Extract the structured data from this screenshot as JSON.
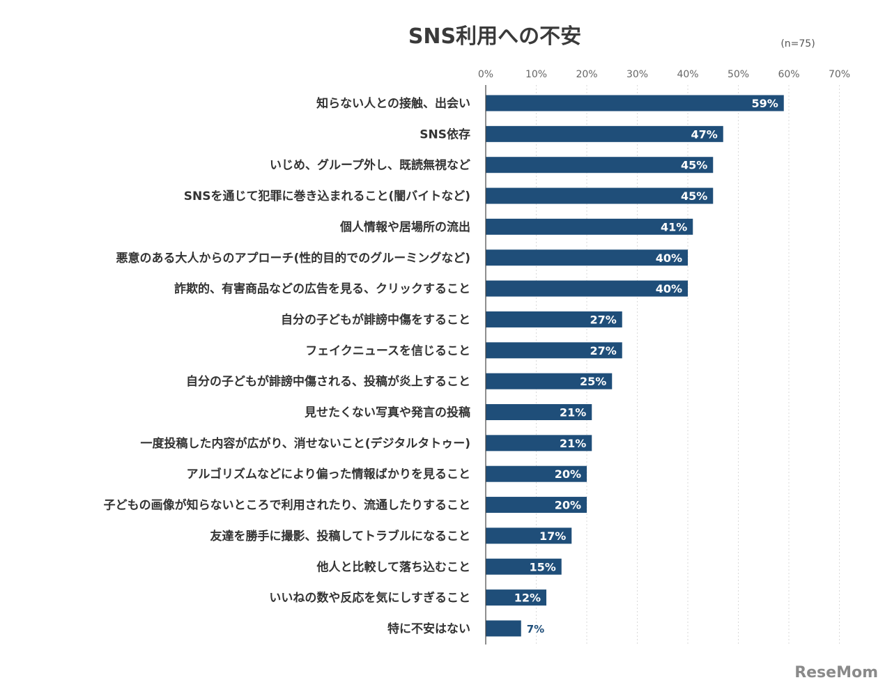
{
  "chart_data": {
    "type": "bar",
    "orientation": "horizontal",
    "title": "SNS利用への不安",
    "note": "(n=75)",
    "x_ticks": [
      "0%",
      "10%",
      "20%",
      "30%",
      "40%",
      "50%",
      "60%",
      "70%"
    ],
    "xlim": [
      0,
      70
    ],
    "grid": true,
    "bar_color": "#1f4e79",
    "categories": [
      "知らない人との接触、出会い",
      "SNS依存",
      "いじめ、グループ外し、既読無視など",
      "SNSを通じて犯罪に巻き込まれること(闇バイトなど)",
      "個人情報や居場所の流出",
      "悪意のある大人からのアプローチ(性的目的でのグルーミングなど)",
      "詐欺的、有害商品などの広告を見る、クリックすること",
      "自分の子どもが誹謗中傷をすること",
      "フェイクニュースを信じること",
      "自分の子どもが誹謗中傷される、投稿が炎上すること",
      "見せたくない写真や発言の投稿",
      "一度投稿した内容が広がり、消せないこと(デジタルタトゥー)",
      "アルゴリズムなどにより偏った情報ばかりを見ること",
      "子どもの画像が知らないところで利用されたり、流通したりすること",
      "友達を勝手に撮影、投稿してトラブルになること",
      "他人と比較して落ち込むこと",
      "いいねの数や反応を気にしすぎること",
      "特に不安はない"
    ],
    "values": [
      59,
      47,
      45,
      45,
      41,
      40,
      40,
      27,
      27,
      25,
      21,
      21,
      20,
      20,
      17,
      15,
      12,
      7
    ],
    "value_labels": [
      "59%",
      "47%",
      "45%",
      "45%",
      "41%",
      "40%",
      "40%",
      "27%",
      "27%",
      "25%",
      "21%",
      "21%",
      "20%",
      "20%",
      "17%",
      "15%",
      "12%",
      "7%"
    ]
  },
  "brand": {
    "logo_text": "ReseMom",
    "logo_color": "#8a8a8a"
  }
}
